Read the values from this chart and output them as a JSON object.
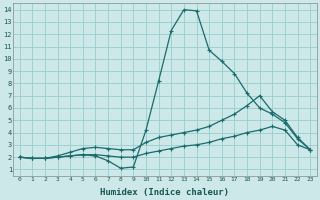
{
  "xlabel": "Humidex (Indice chaleur)",
  "bg_color": "#cce8e8",
  "grid_color": "#99cccc",
  "line_color": "#1a6b6b",
  "xlim": [
    -0.5,
    23.5
  ],
  "ylim": [
    0.5,
    14.5
  ],
  "xticks": [
    0,
    1,
    2,
    3,
    4,
    5,
    6,
    7,
    8,
    9,
    10,
    11,
    12,
    13,
    14,
    15,
    16,
    17,
    18,
    19,
    20,
    21,
    22,
    23
  ],
  "yticks": [
    1,
    2,
    3,
    4,
    5,
    6,
    7,
    8,
    9,
    10,
    11,
    12,
    13,
    14
  ],
  "series1_x": [
    0,
    1,
    2,
    3,
    4,
    5,
    6,
    7,
    8,
    9,
    10,
    11,
    12,
    13,
    14,
    15,
    16,
    17,
    18,
    19,
    20,
    21,
    22,
    23
  ],
  "series1_y": [
    2.0,
    1.9,
    1.9,
    2.0,
    2.1,
    2.2,
    2.1,
    1.7,
    1.1,
    1.2,
    4.2,
    8.2,
    12.3,
    14.0,
    13.9,
    10.7,
    9.8,
    8.8,
    7.2,
    6.0,
    5.5,
    4.8,
    3.5,
    2.6
  ],
  "series2_x": [
    0,
    1,
    2,
    3,
    4,
    5,
    6,
    7,
    8,
    9,
    10,
    11,
    12,
    13,
    14,
    15,
    16,
    17,
    18,
    19,
    20,
    21,
    22,
    23
  ],
  "series2_y": [
    2.0,
    1.9,
    1.9,
    2.1,
    2.4,
    2.7,
    2.8,
    2.7,
    2.6,
    2.6,
    3.2,
    3.6,
    3.8,
    4.0,
    4.2,
    4.5,
    5.0,
    5.5,
    6.2,
    7.0,
    5.7,
    5.0,
    3.6,
    2.6
  ],
  "series3_x": [
    0,
    1,
    2,
    3,
    4,
    5,
    6,
    7,
    8,
    9,
    10,
    11,
    12,
    13,
    14,
    15,
    16,
    17,
    18,
    19,
    20,
    21,
    22,
    23
  ],
  "series3_y": [
    2.0,
    1.9,
    1.9,
    2.0,
    2.1,
    2.2,
    2.2,
    2.1,
    2.0,
    2.0,
    2.3,
    2.5,
    2.7,
    2.9,
    3.0,
    3.2,
    3.5,
    3.7,
    4.0,
    4.2,
    4.5,
    4.2,
    3.0,
    2.6
  ]
}
